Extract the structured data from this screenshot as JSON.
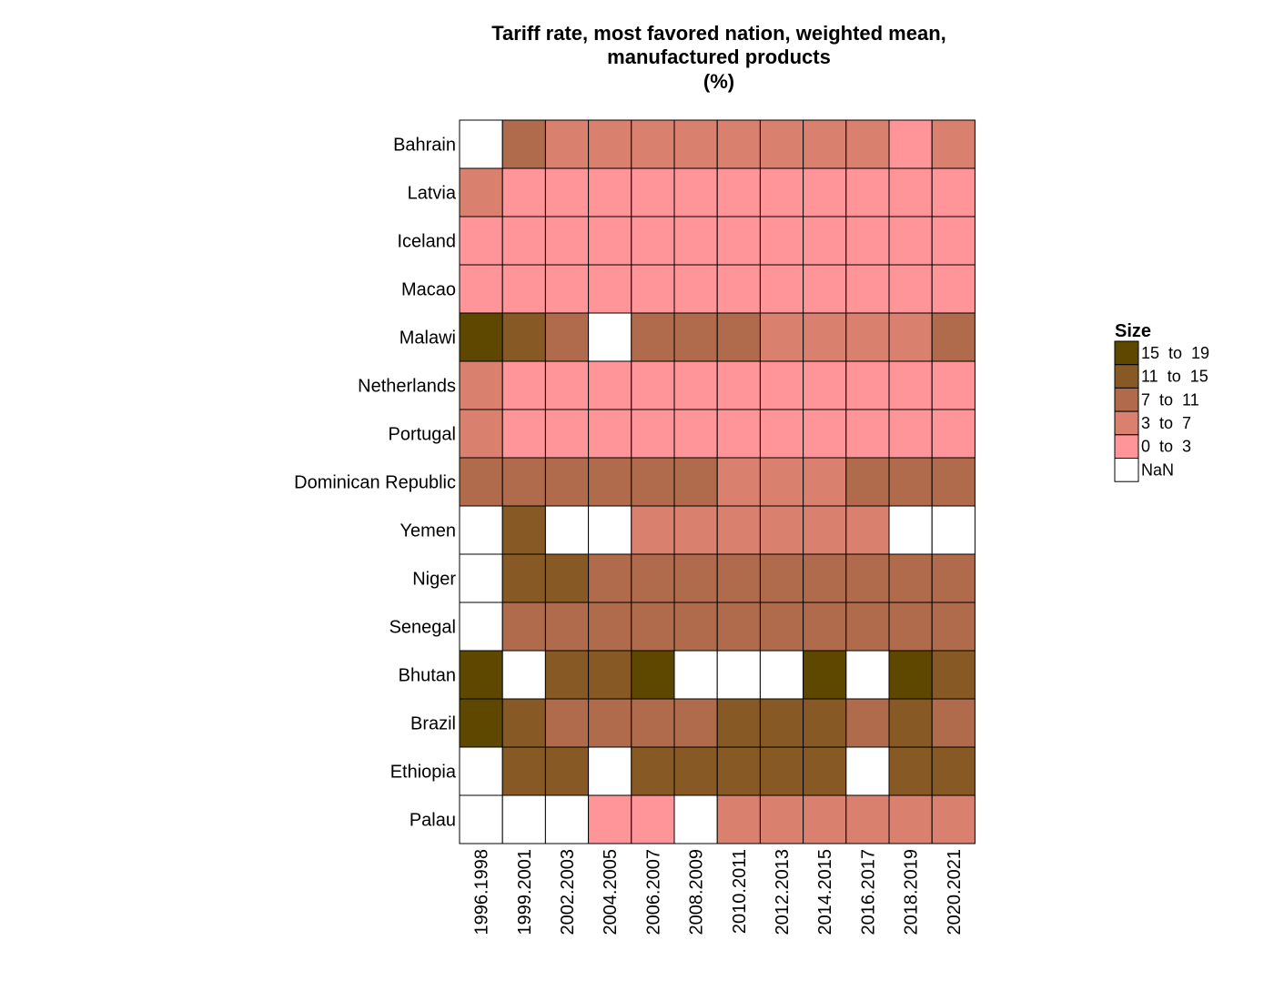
{
  "chart_data": {
    "type": "heatmap",
    "title_lines": [
      "Tariff rate, most favored nation, weighted mean,",
      "manufactured products",
      "(%)"
    ],
    "rows": [
      "Bahrain",
      "Latvia",
      "Iceland",
      "Macao",
      "Malawi",
      "Netherlands",
      "Portugal",
      "Dominican Republic",
      "Yemen",
      "Niger",
      "Senegal",
      "Bhutan",
      "Brazil",
      "Ethiopia",
      "Palau"
    ],
    "columns": [
      "1996.1998",
      "1999.2001",
      "2002.2003",
      "2004.2005",
      "2006.2007",
      "2008.2009",
      "2010.2011",
      "2012.2013",
      "2014.2015",
      "2016.2017",
      "2018.2019",
      "2020.2021"
    ],
    "cells": [
      [
        null,
        "7 to 11",
        "3 to 7",
        "3 to 7",
        "3 to 7",
        "3 to 7",
        "3 to 7",
        "3 to 7",
        "3 to 7",
        "3 to 7",
        "0 to 3",
        "3 to 7"
      ],
      [
        "3 to 7",
        "0 to 3",
        "0 to 3",
        "0 to 3",
        "0 to 3",
        "0 to 3",
        "0 to 3",
        "0 to 3",
        "0 to 3",
        "0 to 3",
        "0 to 3",
        "0 to 3"
      ],
      [
        "0 to 3",
        "0 to 3",
        "0 to 3",
        "0 to 3",
        "0 to 3",
        "0 to 3",
        "0 to 3",
        "0 to 3",
        "0 to 3",
        "0 to 3",
        "0 to 3",
        "0 to 3"
      ],
      [
        "0 to 3",
        "0 to 3",
        "0 to 3",
        "0 to 3",
        "0 to 3",
        "0 to 3",
        "0 to 3",
        "0 to 3",
        "0 to 3",
        "0 to 3",
        "0 to 3",
        "0 to 3"
      ],
      [
        "15 to 19",
        "11 to 15",
        "7 to 11",
        null,
        "7 to 11",
        "7 to 11",
        "7 to 11",
        "3 to 7",
        "3 to 7",
        "3 to 7",
        "3 to 7",
        "7 to 11"
      ],
      [
        "3 to 7",
        "0 to 3",
        "0 to 3",
        "0 to 3",
        "0 to 3",
        "0 to 3",
        "0 to 3",
        "0 to 3",
        "0 to 3",
        "0 to 3",
        "0 to 3",
        "0 to 3"
      ],
      [
        "3 to 7",
        "0 to 3",
        "0 to 3",
        "0 to 3",
        "0 to 3",
        "0 to 3",
        "0 to 3",
        "0 to 3",
        "0 to 3",
        "0 to 3",
        "0 to 3",
        "0 to 3"
      ],
      [
        "7 to 11",
        "7 to 11",
        "7 to 11",
        "7 to 11",
        "7 to 11",
        "7 to 11",
        "3 to 7",
        "3 to 7",
        "3 to 7",
        "7 to 11",
        "7 to 11",
        "7 to 11"
      ],
      [
        null,
        "11 to 15",
        null,
        null,
        "3 to 7",
        "3 to 7",
        "3 to 7",
        "3 to 7",
        "3 to 7",
        "3 to 7",
        null,
        null
      ],
      [
        null,
        "11 to 15",
        "11 to 15",
        "7 to 11",
        "7 to 11",
        "7 to 11",
        "7 to 11",
        "7 to 11",
        "7 to 11",
        "7 to 11",
        "7 to 11",
        "7 to 11"
      ],
      [
        null,
        "7 to 11",
        "7 to 11",
        "7 to 11",
        "7 to 11",
        "7 to 11",
        "7 to 11",
        "7 to 11",
        "7 to 11",
        "7 to 11",
        "7 to 11",
        "7 to 11"
      ],
      [
        "15 to 19",
        null,
        "11 to 15",
        "11 to 15",
        "15 to 19",
        null,
        null,
        null,
        "15 to 19",
        null,
        "15 to 19",
        "11 to 15"
      ],
      [
        "15 to 19",
        "11 to 15",
        "7 to 11",
        "7 to 11",
        "7 to 11",
        "7 to 11",
        "11 to 15",
        "11 to 15",
        "11 to 15",
        "7 to 11",
        "11 to 15",
        "7 to 11"
      ],
      [
        null,
        "11 to 15",
        "11 to 15",
        null,
        "11 to 15",
        "11 to 15",
        "11 to 15",
        "11 to 15",
        "11 to 15",
        null,
        "11 to 15",
        "11 to 15"
      ],
      [
        null,
        null,
        null,
        "0 to 3",
        "0 to 3",
        null,
        "3 to 7",
        "3 to 7",
        "3 to 7",
        "3 to 7",
        "3 to 7",
        "3 to 7"
      ]
    ],
    "legend": {
      "title": "Size",
      "items": [
        {
          "key": "15 to 19",
          "label": "15  to  19",
          "color": "#5e4800"
        },
        {
          "key": "11 to 15",
          "label": "11  to  15",
          "color": "#875a25"
        },
        {
          "key": "7 to 11",
          "label": "7  to  11",
          "color": "#b06b4c"
        },
        {
          "key": "3 to 7",
          "label": "3  to  7",
          "color": "#d9806f"
        },
        {
          "key": "0 to 3",
          "label": "0  to  3",
          "color": "#ff9599"
        },
        {
          "key": null,
          "label": "NaN",
          "color": "#ffffff"
        }
      ]
    },
    "legend_position": "right"
  }
}
